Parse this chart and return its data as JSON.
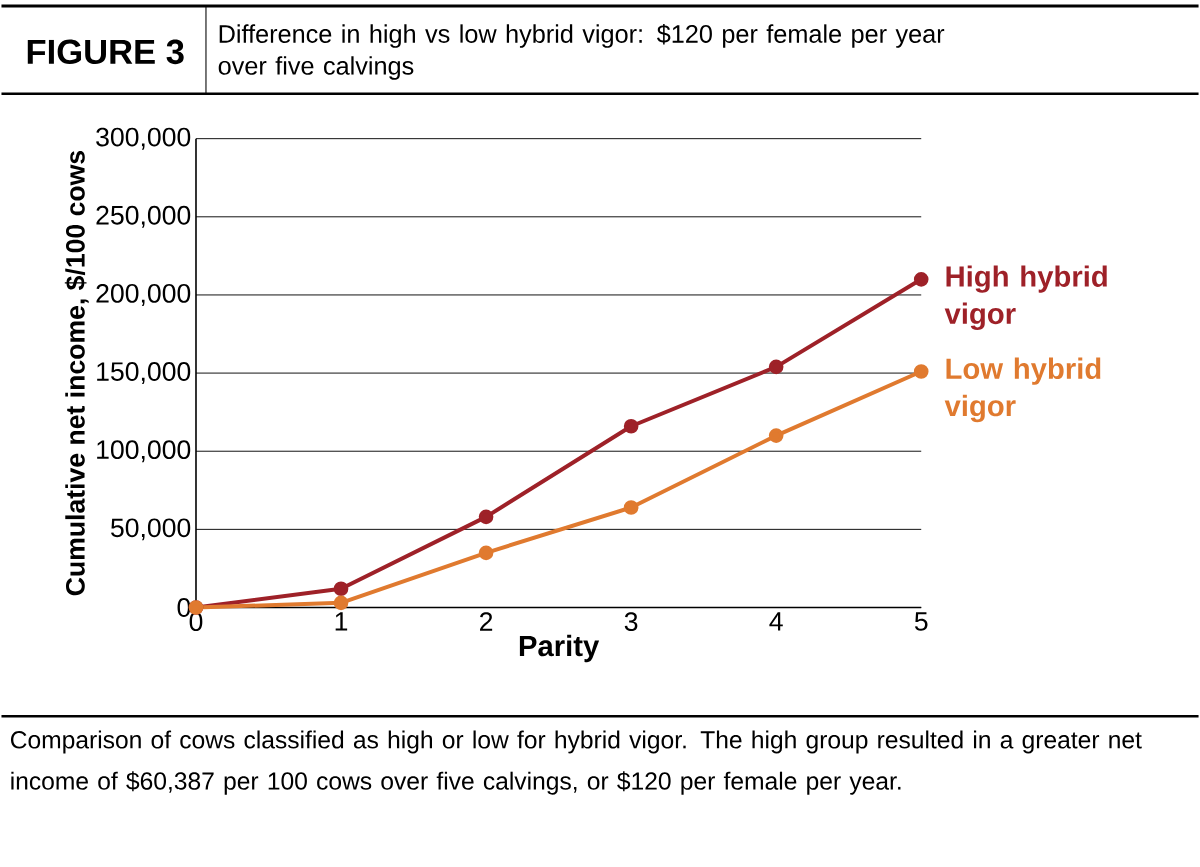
{
  "chart_data": {
    "type": "line",
    "title": "FIGURE 3",
    "subtitle": "Difference in high vs low hybrid vigor: $120 per female per year over five calvings",
    "xlabel": "Parity",
    "ylabel": "Cumulative net income, $/100 cows",
    "x": [
      0,
      1,
      2,
      3,
      4,
      5
    ],
    "series": [
      {
        "name": "High hybrid vigor",
        "color": "#9e2128",
        "values": [
          0,
          12000,
          58000,
          116000,
          154000,
          210000
        ]
      },
      {
        "name": "Low hybrid vigor",
        "color": "#e07a2f",
        "values": [
          0,
          3000,
          35000,
          64000,
          110000,
          151000
        ]
      }
    ],
    "xlim": [
      0,
      5
    ],
    "xticks": [
      0,
      1,
      2,
      3,
      4,
      5
    ],
    "ylim": [
      0,
      300000
    ],
    "yticks": [
      0,
      {
        "value": 50000,
        "label": "50,000"
      },
      {
        "value": 100000,
        "label": "100,000"
      },
      {
        "value": 150000,
        "label": "150,000"
      },
      {
        "value": 200000,
        "label": "200,000"
      },
      {
        "value": 250000,
        "label": "250,000"
      },
      {
        "value": 300000,
        "label": "300,000"
      }
    ],
    "grid": "y",
    "marker": "circle",
    "line_style": "solid",
    "legend": false,
    "annotations": [
      "Comparison of cows classified as high or low for hybrid vigor. The high group resulted in a greater net income of $60,387 per 100 cows over five calvings, or $120 per female per year."
    ]
  }
}
